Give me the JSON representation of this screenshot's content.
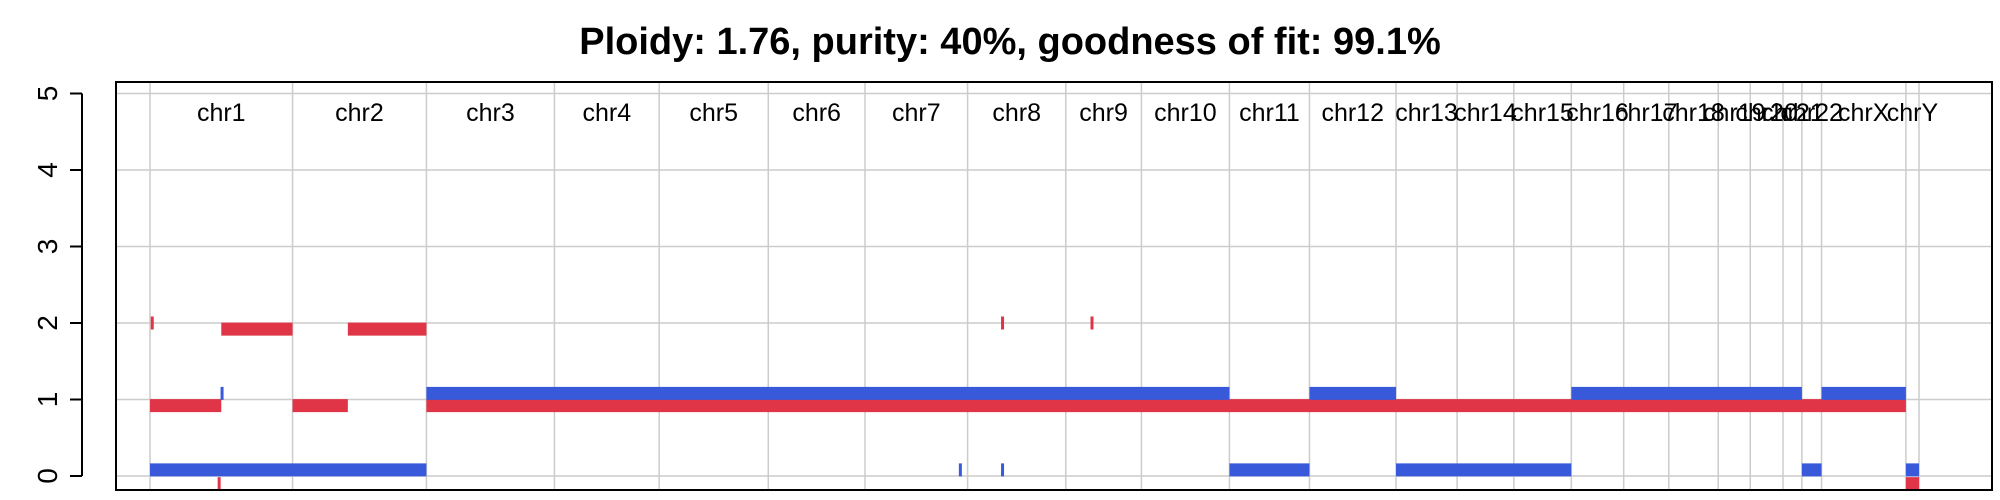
{
  "chart_data": {
    "type": "bar",
    "title": "Ploidy: 1.76, purity: 40%, goodness of fit: 99.1%",
    "xlabel": "",
    "ylabel": "",
    "ylim": [
      0,
      5
    ],
    "y_ticks": [
      0,
      1,
      2,
      3,
      4,
      5
    ],
    "y_tick_labels": [
      "0",
      "1",
      "2",
      "3",
      "4",
      "5"
    ],
    "grid": true,
    "chromosomes": [
      {
        "name": "chr1",
        "start": 0,
        "end": 1.96
      },
      {
        "name": "chr2",
        "start": 1.96,
        "end": 3.8
      },
      {
        "name": "chr3",
        "start": 3.8,
        "end": 5.56
      },
      {
        "name": "chr4",
        "start": 5.56,
        "end": 7.0
      },
      {
        "name": "chr5",
        "start": 7.0,
        "end": 8.5
      },
      {
        "name": "chr6",
        "start": 8.5,
        "end": 9.83
      },
      {
        "name": "chr7",
        "start": 9.83,
        "end": 11.24
      },
      {
        "name": "chr8",
        "start": 11.24,
        "end": 12.59
      },
      {
        "name": "chr9",
        "start": 12.59,
        "end": 13.63
      },
      {
        "name": "chr10",
        "start": 13.63,
        "end": 14.84
      },
      {
        "name": "chr11",
        "start": 14.84,
        "end": 15.94
      },
      {
        "name": "chr12",
        "start": 15.94,
        "end": 17.13
      },
      {
        "name": "chr13",
        "start": 17.13,
        "end": 17.97
      },
      {
        "name": "chr14",
        "start": 17.97,
        "end": 18.75
      },
      {
        "name": "chr15",
        "start": 18.75,
        "end": 19.54
      },
      {
        "name": "chr16",
        "start": 19.54,
        "end": 20.26
      },
      {
        "name": "chr17",
        "start": 20.26,
        "end": 20.88
      },
      {
        "name": "chr18",
        "start": 20.88,
        "end": 21.56
      },
      {
        "name": "chr19",
        "start": 21.56,
        "end": 22.0
      },
      {
        "name": "chr20",
        "start": 22.0,
        "end": 22.45
      },
      {
        "name": "chr21",
        "start": 22.45,
        "end": 22.71
      },
      {
        "name": "chr22",
        "start": 22.71,
        "end": 22.98
      },
      {
        "name": "chrX",
        "start": 22.98,
        "end": 24.14
      },
      {
        "name": "chrY",
        "start": 24.14,
        "end": 24.32
      }
    ],
    "series": [
      {
        "name": "",
        "color": "#df3546",
        "segments": [
          {
            "start": 0.01,
            "end": 0.05,
            "value": 2
          },
          {
            "start": 0.0,
            "end": 0.98,
            "value": 0.92
          },
          {
            "start": 0.98,
            "end": 1.96,
            "value": 1.92
          },
          {
            "start": 0.93,
            "end": 0.96,
            "value": -0.1
          },
          {
            "start": 1.96,
            "end": 2.72,
            "value": 0.92
          },
          {
            "start": 2.72,
            "end": 3.8,
            "value": 1.92
          },
          {
            "start": 3.8,
            "end": 24.14,
            "value": 0.92
          },
          {
            "start": 11.7,
            "end": 11.73,
            "value": 2
          },
          {
            "start": 12.93,
            "end": 12.96,
            "value": 2
          },
          {
            "start": 24.14,
            "end": 24.32,
            "value": -0.1
          }
        ]
      },
      {
        "name": "",
        "color": "#3859d9",
        "segments": [
          {
            "start": 0.0,
            "end": 3.8,
            "value": 0.08
          },
          {
            "start": 0.97,
            "end": 1.0,
            "value": 1.08
          },
          {
            "start": 3.8,
            "end": 14.84,
            "value": 1.08
          },
          {
            "start": 11.12,
            "end": 11.15,
            "value": 0.08
          },
          {
            "start": 11.7,
            "end": 11.73,
            "value": 0.08
          },
          {
            "start": 14.84,
            "end": 15.94,
            "value": 0.08
          },
          {
            "start": 15.94,
            "end": 17.13,
            "value": 1.08
          },
          {
            "start": 17.13,
            "end": 19.54,
            "value": 0.08
          },
          {
            "start": 19.54,
            "end": 22.71,
            "value": 1.08
          },
          {
            "start": 22.71,
            "end": 22.98,
            "value": 0.08
          },
          {
            "start": 22.98,
            "end": 24.14,
            "value": 1.08
          },
          {
            "start": 24.14,
            "end": 24.32,
            "value": 0.08
          }
        ]
      }
    ],
    "colors": {
      "grid": "#cccccc",
      "axis": "#000000",
      "copy_number_major": "#3859d9",
      "copy_number_minor": "#df3546"
    }
  }
}
